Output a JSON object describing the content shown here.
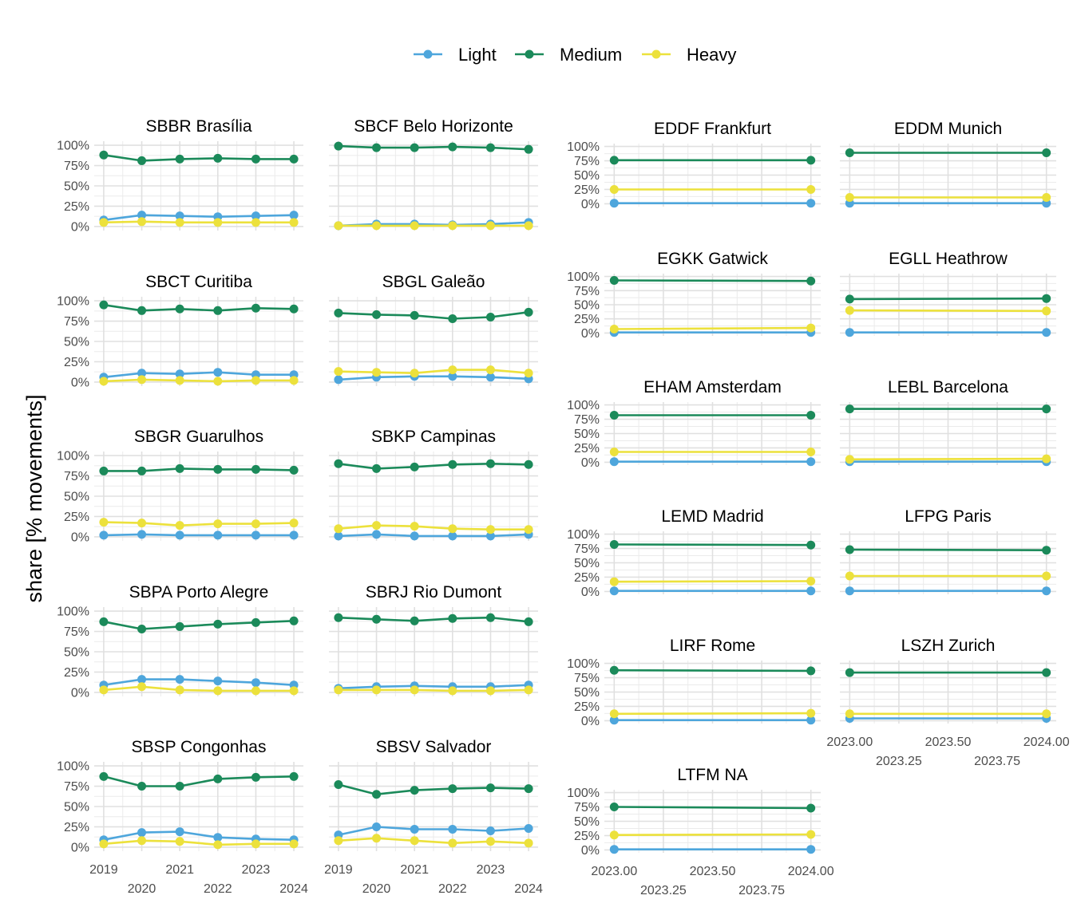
{
  "figure": {
    "ylabel": "share [% movements]",
    "legend": [
      {
        "name": "Light",
        "color": "#4ea6dc"
      },
      {
        "name": "Medium",
        "color": "#1b8a5a"
      },
      {
        "name": "Heavy",
        "color": "#ece13c"
      }
    ],
    "y_ticks": [
      "0%",
      "25%",
      "50%",
      "75%",
      "100%"
    ],
    "x_ticks_brazil": [
      "2019",
      "2020",
      "2021",
      "2022",
      "2023",
      "2024"
    ],
    "x_ticks_europe": [
      "2023.00",
      "2023.25",
      "2023.50",
      "2023.75",
      "2024.00"
    ]
  },
  "chart_data": [
    {
      "type": "line",
      "title": "SBBR Brasília",
      "x": [
        2019,
        2020,
        2021,
        2022,
        2023,
        2024
      ],
      "ylim": [
        0,
        100
      ],
      "series": [
        {
          "name": "Light",
          "values": [
            8,
            14,
            13,
            12,
            13,
            14
          ]
        },
        {
          "name": "Medium",
          "values": [
            88,
            81,
            83,
            84,
            83,
            83
          ]
        },
        {
          "name": "Heavy",
          "values": [
            5,
            6,
            5,
            5,
            5,
            5
          ]
        }
      ]
    },
    {
      "type": "line",
      "title": "SBCF Belo Horizonte",
      "x": [
        2019,
        2020,
        2021,
        2022,
        2023,
        2024
      ],
      "ylim": [
        0,
        100
      ],
      "series": [
        {
          "name": "Light",
          "values": [
            1,
            3,
            3,
            2,
            3,
            5
          ]
        },
        {
          "name": "Medium",
          "values": [
            99,
            97,
            97,
            98,
            97,
            95
          ]
        },
        {
          "name": "Heavy",
          "values": [
            1,
            1,
            1,
            1,
            1,
            1
          ]
        }
      ]
    },
    {
      "type": "line",
      "title": "SBCT Curitiba",
      "x": [
        2019,
        2020,
        2021,
        2022,
        2023,
        2024
      ],
      "ylim": [
        0,
        100
      ],
      "series": [
        {
          "name": "Light",
          "values": [
            6,
            11,
            10,
            12,
            9,
            9
          ]
        },
        {
          "name": "Medium",
          "values": [
            95,
            88,
            90,
            88,
            91,
            90
          ]
        },
        {
          "name": "Heavy",
          "values": [
            1,
            3,
            2,
            1,
            2,
            2
          ]
        }
      ]
    },
    {
      "type": "line",
      "title": "SBGL Galeão",
      "x": [
        2019,
        2020,
        2021,
        2022,
        2023,
        2024
      ],
      "ylim": [
        0,
        100
      ],
      "series": [
        {
          "name": "Light",
          "values": [
            3,
            6,
            7,
            7,
            6,
            4
          ]
        },
        {
          "name": "Medium",
          "values": [
            85,
            83,
            82,
            78,
            80,
            86
          ]
        },
        {
          "name": "Heavy",
          "values": [
            13,
            12,
            11,
            15,
            15,
            11
          ]
        }
      ]
    },
    {
      "type": "line",
      "title": "SBGR Guarulhos",
      "x": [
        2019,
        2020,
        2021,
        2022,
        2023,
        2024
      ],
      "ylim": [
        0,
        100
      ],
      "series": [
        {
          "name": "Light",
          "values": [
            2,
            3,
            2,
            2,
            2,
            2
          ]
        },
        {
          "name": "Medium",
          "values": [
            81,
            81,
            84,
            83,
            83,
            82
          ]
        },
        {
          "name": "Heavy",
          "values": [
            18,
            17,
            14,
            16,
            16,
            17
          ]
        }
      ]
    },
    {
      "type": "line",
      "title": "SBKP Campinas",
      "x": [
        2019,
        2020,
        2021,
        2022,
        2023,
        2024
      ],
      "ylim": [
        0,
        100
      ],
      "series": [
        {
          "name": "Light",
          "values": [
            1,
            3,
            1,
            1,
            1,
            3
          ]
        },
        {
          "name": "Medium",
          "values": [
            90,
            84,
            86,
            89,
            90,
            89
          ]
        },
        {
          "name": "Heavy",
          "values": [
            10,
            14,
            13,
            10,
            9,
            9
          ]
        }
      ]
    },
    {
      "type": "line",
      "title": "SBPA Porto Alegre",
      "x": [
        2019,
        2020,
        2021,
        2022,
        2023,
        2024
      ],
      "ylim": [
        0,
        100
      ],
      "series": [
        {
          "name": "Light",
          "values": [
            9,
            16,
            16,
            14,
            12,
            9
          ]
        },
        {
          "name": "Medium",
          "values": [
            87,
            78,
            81,
            84,
            86,
            88
          ]
        },
        {
          "name": "Heavy",
          "values": [
            3,
            7,
            3,
            2,
            2,
            2
          ]
        }
      ]
    },
    {
      "type": "line",
      "title": "SBRJ Rio Dumont",
      "x": [
        2019,
        2020,
        2021,
        2022,
        2023,
        2024
      ],
      "ylim": [
        0,
        100
      ],
      "series": [
        {
          "name": "Light",
          "values": [
            5,
            7,
            8,
            7,
            7,
            9
          ]
        },
        {
          "name": "Medium",
          "values": [
            92,
            90,
            88,
            91,
            92,
            87
          ]
        },
        {
          "name": "Heavy",
          "values": [
            3,
            3,
            3,
            2,
            2,
            3
          ]
        }
      ]
    },
    {
      "type": "line",
      "title": "SBSP Congonhas",
      "x": [
        2019,
        2020,
        2021,
        2022,
        2023,
        2024
      ],
      "ylim": [
        0,
        100
      ],
      "series": [
        {
          "name": "Light",
          "values": [
            9,
            18,
            19,
            12,
            10,
            9
          ]
        },
        {
          "name": "Medium",
          "values": [
            87,
            75,
            75,
            84,
            86,
            87
          ]
        },
        {
          "name": "Heavy",
          "values": [
            4,
            8,
            7,
            3,
            4,
            4
          ]
        }
      ]
    },
    {
      "type": "line",
      "title": "SBSV Salvador",
      "x": [
        2019,
        2020,
        2021,
        2022,
        2023,
        2024
      ],
      "ylim": [
        0,
        100
      ],
      "series": [
        {
          "name": "Light",
          "values": [
            15,
            25,
            22,
            22,
            20,
            23
          ]
        },
        {
          "name": "Medium",
          "values": [
            77,
            65,
            70,
            72,
            73,
            72
          ]
        },
        {
          "name": "Heavy",
          "values": [
            8,
            11,
            8,
            5,
            7,
            5
          ]
        }
      ]
    },
    {
      "type": "line",
      "title": "EDDF Frankfurt",
      "x": [
        2023,
        2024
      ],
      "ylim": [
        0,
        100
      ],
      "series": [
        {
          "name": "Light",
          "values": [
            1,
            1
          ]
        },
        {
          "name": "Medium",
          "values": [
            76,
            76
          ]
        },
        {
          "name": "Heavy",
          "values": [
            25,
            25
          ]
        }
      ]
    },
    {
      "type": "line",
      "title": "EDDM Munich",
      "x": [
        2023,
        2024
      ],
      "ylim": [
        0,
        100
      ],
      "series": [
        {
          "name": "Light",
          "values": [
            1,
            1
          ]
        },
        {
          "name": "Medium",
          "values": [
            89,
            89
          ]
        },
        {
          "name": "Heavy",
          "values": [
            11,
            11
          ]
        }
      ]
    },
    {
      "type": "line",
      "title": "EGKK Gatwick",
      "x": [
        2023,
        2024
      ],
      "ylim": [
        0,
        100
      ],
      "series": [
        {
          "name": "Light",
          "values": [
            1,
            1
          ]
        },
        {
          "name": "Medium",
          "values": [
            93,
            92
          ]
        },
        {
          "name": "Heavy",
          "values": [
            7,
            9
          ]
        }
      ]
    },
    {
      "type": "line",
      "title": "EGLL Heathrow",
      "x": [
        2023,
        2024
      ],
      "ylim": [
        0,
        100
      ],
      "series": [
        {
          "name": "Light",
          "values": [
            1,
            1
          ]
        },
        {
          "name": "Medium",
          "values": [
            60,
            61
          ]
        },
        {
          "name": "Heavy",
          "values": [
            40,
            39
          ]
        }
      ]
    },
    {
      "type": "line",
      "title": "EHAM Amsterdam",
      "x": [
        2023,
        2024
      ],
      "ylim": [
        0,
        100
      ],
      "series": [
        {
          "name": "Light",
          "values": [
            1,
            1
          ]
        },
        {
          "name": "Medium",
          "values": [
            82,
            82
          ]
        },
        {
          "name": "Heavy",
          "values": [
            18,
            18
          ]
        }
      ]
    },
    {
      "type": "line",
      "title": "LEBL Barcelona",
      "x": [
        2023,
        2024
      ],
      "ylim": [
        0,
        100
      ],
      "series": [
        {
          "name": "Light",
          "values": [
            1,
            1
          ]
        },
        {
          "name": "Medium",
          "values": [
            93,
            93
          ]
        },
        {
          "name": "Heavy",
          "values": [
            5,
            6
          ]
        }
      ]
    },
    {
      "type": "line",
      "title": "LEMD Madrid",
      "x": [
        2023,
        2024
      ],
      "ylim": [
        0,
        100
      ],
      "series": [
        {
          "name": "Light",
          "values": [
            1,
            1
          ]
        },
        {
          "name": "Medium",
          "values": [
            82,
            81
          ]
        },
        {
          "name": "Heavy",
          "values": [
            17,
            18
          ]
        }
      ]
    },
    {
      "type": "line",
      "title": "LFPG Paris",
      "x": [
        2023,
        2024
      ],
      "ylim": [
        0,
        100
      ],
      "series": [
        {
          "name": "Light",
          "values": [
            1,
            1
          ]
        },
        {
          "name": "Medium",
          "values": [
            73,
            72
          ]
        },
        {
          "name": "Heavy",
          "values": [
            27,
            27
          ]
        }
      ]
    },
    {
      "type": "line",
      "title": "LIRF Rome",
      "x": [
        2023,
        2024
      ],
      "ylim": [
        0,
        100
      ],
      "series": [
        {
          "name": "Light",
          "values": [
            1,
            1
          ]
        },
        {
          "name": "Medium",
          "values": [
            88,
            87
          ]
        },
        {
          "name": "Heavy",
          "values": [
            12,
            13
          ]
        }
      ]
    },
    {
      "type": "line",
      "title": "LSZH Zurich",
      "x": [
        2023,
        2024
      ],
      "ylim": [
        0,
        100
      ],
      "series": [
        {
          "name": "Light",
          "values": [
            4,
            4
          ]
        },
        {
          "name": "Medium",
          "values": [
            84,
            84
          ]
        },
        {
          "name": "Heavy",
          "values": [
            12,
            12
          ]
        }
      ]
    },
    {
      "type": "line",
      "title": "LTFM NA",
      "x": [
        2023,
        2024
      ],
      "ylim": [
        0,
        100
      ],
      "series": [
        {
          "name": "Light",
          "values": [
            1,
            1
          ]
        },
        {
          "name": "Medium",
          "values": [
            75,
            73
          ]
        },
        {
          "name": "Heavy",
          "values": [
            26,
            27
          ]
        }
      ]
    }
  ]
}
